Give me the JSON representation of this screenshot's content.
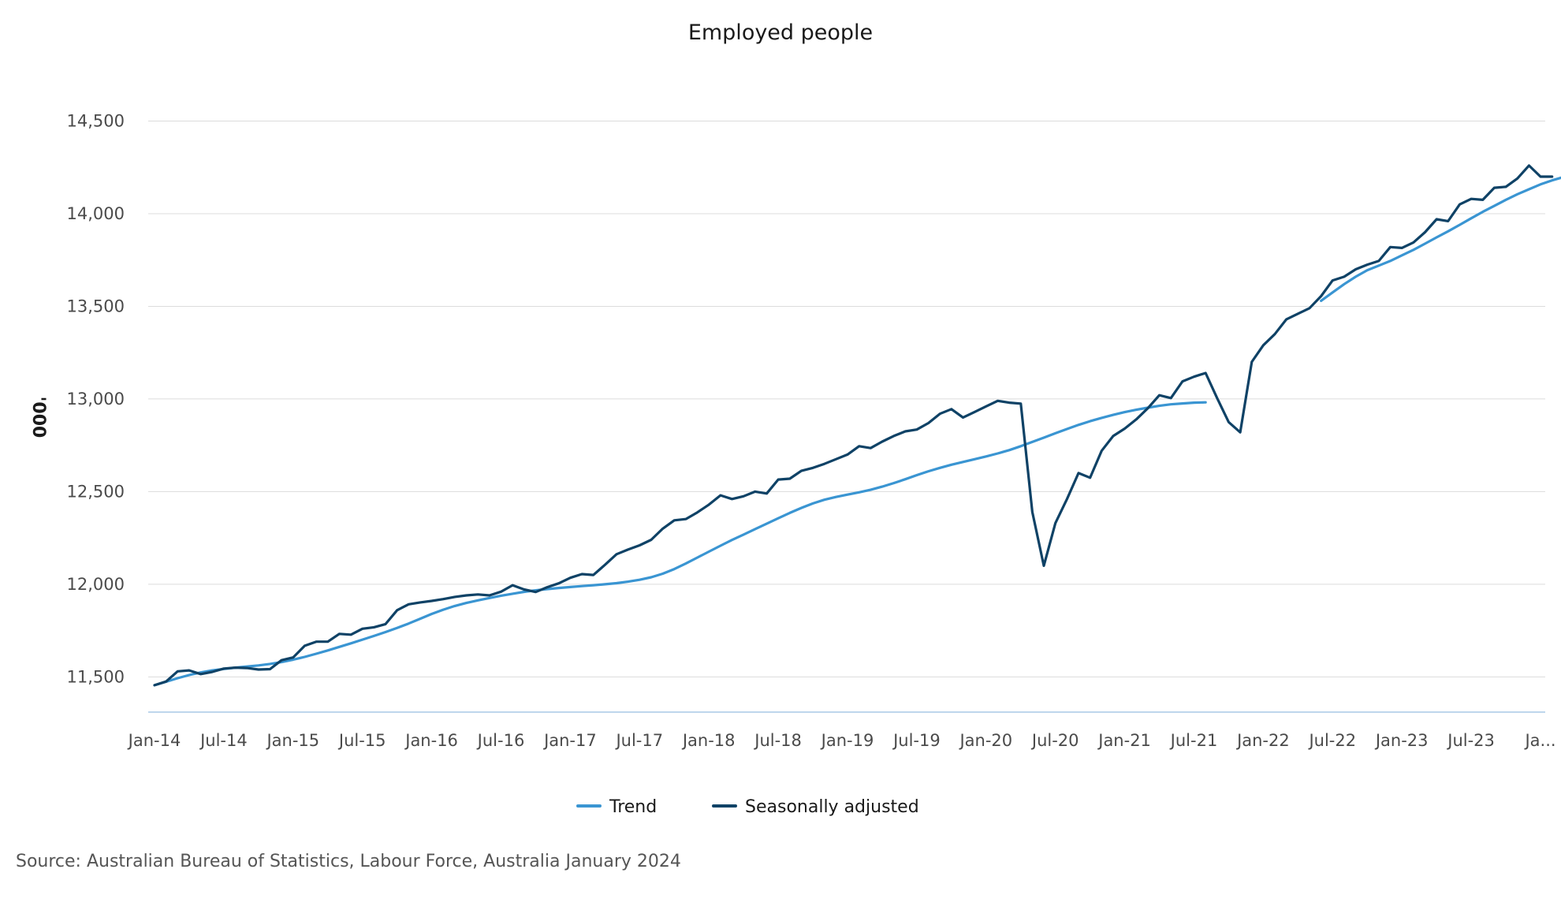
{
  "chart_data": {
    "type": "line",
    "title": "Employed people",
    "ylabel": "'000",
    "xlabel": "",
    "ylim": [
      11310,
      14600
    ],
    "yticks": [
      11500,
      12000,
      12500,
      13000,
      13500,
      14000,
      14500
    ],
    "ytick_labels": [
      "11,500",
      "12,000",
      "12,500",
      "13,000",
      "13,500",
      "14,000",
      "14,500"
    ],
    "xtick_labels": [
      "Jan-14",
      "Jul-14",
      "Jan-15",
      "Jul-15",
      "Jan-16",
      "Jul-16",
      "Jan-17",
      "Jul-17",
      "Jan-18",
      "Jul-18",
      "Jan-19",
      "Jul-19",
      "Jan-20",
      "Jul-20",
      "Jan-21",
      "Jul-21",
      "Jan-22",
      "Jul-22",
      "Jan-23",
      "Jul-23",
      "Ja..."
    ],
    "x_start": "Jan-14",
    "x_end": "Jan-24",
    "grid": true,
    "legend_position": "bottom-center",
    "series": [
      {
        "name": "Trend",
        "color": "#3a95d2",
        "segments": [
          {
            "start": "Jan-14",
            "values": [
              11455,
              11474,
              11493,
              11510,
              11524,
              11535,
              11543,
              11550,
              11556,
              11562,
              11570,
              11580,
              11593,
              11608,
              11625,
              11643,
              11662,
              11681,
              11701,
              11721,
              11742,
              11764,
              11788,
              11814,
              11840,
              11863,
              11883,
              11899,
              11913,
              11926,
              11938,
              11949,
              11959,
              11967,
              11974,
              11980,
              11985,
              11990,
              11995,
              12000,
              12006,
              12014,
              12024,
              12038,
              12057,
              12082,
              12112,
              12144,
              12176,
              12208,
              12239,
              12268,
              12298,
              12327,
              12356,
              12385,
              12412,
              12436,
              12456,
              12471,
              12484,
              12496,
              12510,
              12527,
              12546,
              12567,
              12589,
              12610,
              12628,
              12645,
              12660,
              12675,
              12690,
              12706,
              12724,
              12745,
              12768,
              12791,
              12815,
              12838,
              12860,
              12880,
              12898,
              12914,
              12929,
              12942,
              12953,
              12963,
              12971,
              12976,
              12980,
              12982
            ]
          },
          {
            "start": "Jun-22",
            "values": [
              13530,
              13575,
              13620,
              13660,
              13695,
              13720,
              13745,
              13775,
              13805,
              13838,
              13872,
              13905,
              13940,
              13975,
              14010,
              14042,
              14075,
              14105,
              14132,
              14158,
              14180,
              14198,
              14210,
              14216,
              14220
            ]
          }
        ]
      },
      {
        "name": "Seasonally adjusted",
        "color": "#0f4266",
        "segments": [
          {
            "start": "Jan-14",
            "values": [
              11455,
              11475,
              11530,
              11535,
              11515,
              11527,
              11545,
              11550,
              11548,
              11540,
              11542,
              11590,
              11605,
              11668,
              11690,
              11690,
              11732,
              11728,
              11760,
              11768,
              11785,
              11860,
              11892,
              11902,
              11910,
              11920,
              11932,
              11940,
              11945,
              11940,
              11960,
              11995,
              11972,
              11958,
              11984,
              12005,
              12035,
              12055,
              12050,
              12105,
              12162,
              12187,
              12210,
              12240,
              12300,
              12345,
              12352,
              12388,
              12430,
              12480,
              12460,
              12475,
              12500,
              12490,
              12565,
              12570,
              12612,
              12628,
              12650,
              12675,
              12700,
              12745,
              12735,
              12770,
              12800,
              12825,
              12835,
              12870,
              12920,
              12945,
              12900,
              12930,
              12960,
              12990,
              12980,
              12975,
              12390,
              12100,
              12330,
              12460,
              12600,
              12575,
              12720,
              12800,
              12840,
              12890,
              12950,
              13020,
              13005,
              13095,
              13120,
              13140,
              13005,
              12875,
              12820,
              13200,
              13290,
              13350,
              13430,
              13460,
              13490,
              13555,
              13640,
              13660,
              13700,
              13725,
              13745,
              13820,
              13815,
              13845,
              13900,
              13970,
              13960,
              14050,
              14080,
              14075,
              14140,
              14145,
              14190,
              14260,
              14200,
              14200
            ]
          }
        ]
      }
    ],
    "source": "Source: Australian Bureau of Statistics, Labour Force, Australia January 2024"
  }
}
